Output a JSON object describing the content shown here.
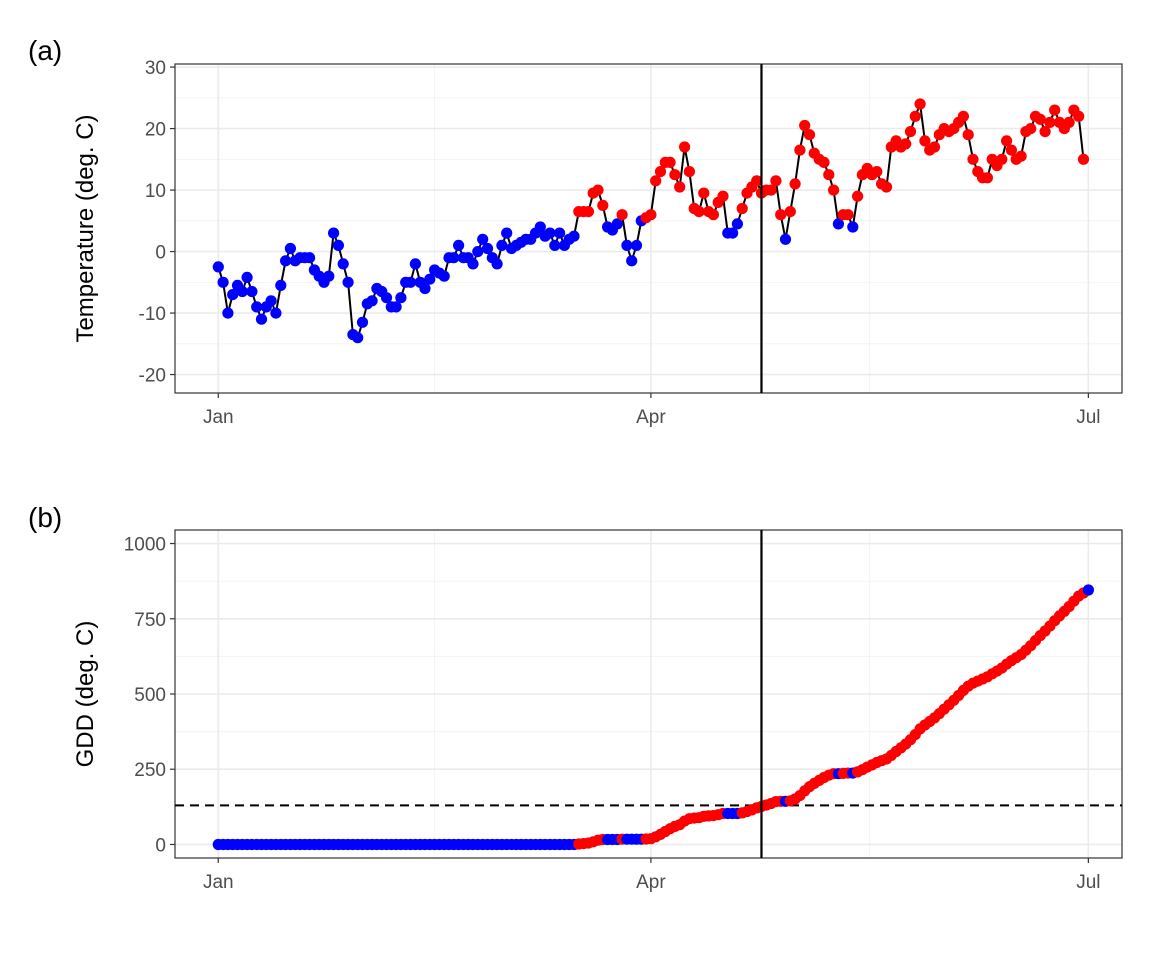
{
  "panels": [
    {
      "label": "(a)",
      "ylabel": "Temperature (deg. C)"
    },
    {
      "label": "(b)",
      "ylabel": "GDD (deg. C)"
    }
  ],
  "colors": {
    "below": "#0000ff",
    "above": "#ff0000",
    "line": "#000000",
    "ref": "#000000"
  },
  "chart_data": [
    {
      "type": "line",
      "panel": "a",
      "x_axis": {
        "unit": "day of year",
        "ticks": [
          {
            "value": 1,
            "label": "Jan"
          },
          {
            "value": 91,
            "label": "Apr"
          },
          {
            "value": 182,
            "label": "Jul"
          }
        ],
        "range": [
          -8,
          189
        ]
      },
      "y_axis": {
        "ticks": [
          -20,
          -10,
          0,
          10,
          20,
          30
        ],
        "range": [
          -23,
          30.5
        ]
      },
      "vertical_line_x": 114,
      "point_color_rule": "red if temperature > 5 deg. C, else blue",
      "grid": true,
      "series": [
        {
          "x_start": 1,
          "values": [
            -2.5,
            -5,
            -10,
            -7,
            -5.5,
            -6.5,
            -4.2,
            -6.5,
            -9,
            -11,
            -9,
            -8,
            -10,
            -5.5,
            -1.5,
            0.5,
            -1.5,
            -1,
            -1,
            -1,
            -3,
            -4,
            -5,
            -4,
            3,
            1,
            -2,
            -5,
            -13.5,
            -14,
            -11.5,
            -8.5,
            -8,
            -6,
            -6.5,
            -7.5,
            -9,
            -9,
            -7.5,
            -5,
            -5,
            -2,
            -5,
            -6,
            -4.5,
            -3,
            -3.5,
            -4,
            -1,
            -1,
            1,
            -1,
            -1,
            -2,
            0,
            2,
            0.5,
            -1,
            -2,
            1,
            3,
            0.5,
            1,
            1.5,
            2,
            2,
            3,
            4,
            2.5,
            3,
            1,
            3,
            1,
            2,
            2.5,
            6.5,
            6.5,
            6.5,
            9.5,
            10,
            7.5,
            4,
            3.5,
            4.5,
            6,
            1,
            -1.5,
            1,
            5,
            5.5,
            6,
            11.5,
            13,
            14.5,
            14.5,
            12.5,
            10.5,
            17,
            13,
            7,
            6.5,
            9.5,
            6.5,
            6,
            8,
            9,
            3,
            3,
            4.5,
            7,
            9.5,
            10.5,
            11.5,
            9.5,
            10,
            10,
            11.5,
            6,
            2,
            6.5,
            11,
            16.5,
            20.5,
            19,
            16,
            15,
            14.5,
            12.5,
            10,
            4.5,
            6,
            6,
            4,
            9,
            12.5,
            13.5,
            12.5,
            13,
            11,
            10.5,
            17,
            18,
            17,
            17.5,
            19.5,
            22,
            24,
            18,
            16.5,
            17,
            19,
            20,
            19.5,
            20,
            21,
            22,
            19,
            15,
            13,
            12,
            12,
            15,
            14,
            15,
            18,
            16.5,
            15,
            15.5,
            19.5,
            20,
            22,
            21.5,
            19.5,
            21,
            23,
            21,
            20,
            21,
            23,
            22,
            15
          ]
        }
      ]
    },
    {
      "type": "line",
      "panel": "b",
      "x_axis": {
        "unit": "day of year",
        "ticks": [
          {
            "value": 1,
            "label": "Jan"
          },
          {
            "value": 91,
            "label": "Apr"
          },
          {
            "value": 182,
            "label": "Jul"
          }
        ],
        "range": [
          -8,
          189
        ]
      },
      "y_axis": {
        "ticks": [
          0,
          250,
          500,
          750,
          1000
        ],
        "range": [
          -45,
          1045
        ]
      },
      "vertical_line_x": 114,
      "horizontal_dashed_y": 130,
      "point_color_rule": "red if that day's temperature > 5 deg. C, else blue",
      "grid": true,
      "series": [
        {
          "x_start": 1,
          "values": [
            0,
            0,
            0,
            0,
            0,
            0,
            0,
            0,
            0,
            0,
            0,
            0,
            0,
            0,
            0,
            0,
            0,
            0,
            0,
            0,
            0,
            0,
            0,
            0,
            0,
            0,
            0,
            0,
            0,
            0,
            0,
            0,
            0,
            0,
            0,
            0,
            0,
            0,
            0,
            0,
            0,
            0,
            0,
            0,
            0,
            0,
            0,
            0,
            0,
            0,
            0,
            0,
            0,
            0,
            0,
            0,
            0,
            0,
            0,
            0,
            0,
            0,
            0,
            0,
            0,
            0,
            0,
            0,
            0,
            0,
            0,
            0,
            0,
            0,
            0,
            1.5,
            3,
            4.5,
            9,
            14,
            16.5,
            16.5,
            16.5,
            16.5,
            17.5,
            17.5,
            17.5,
            17.5,
            17.5,
            18,
            19,
            25.5,
            33.5,
            43,
            52.5,
            60,
            65.5,
            77.5,
            85.5,
            87.5,
            89,
            93.5,
            95,
            96,
            99,
            103,
            103,
            103,
            103,
            105,
            109.5,
            115,
            121.5,
            126,
            131,
            136,
            142.5,
            143.5,
            143.5,
            145,
            151,
            162.5,
            178,
            192,
            203,
            213,
            222.5,
            230,
            235,
            235,
            236,
            237,
            237,
            241,
            248.5,
            257,
            264.5,
            272.5,
            278.5,
            284,
            296,
            309,
            321,
            333.5,
            348,
            365,
            384,
            397,
            408.5,
            420.5,
            434.5,
            449.5,
            464,
            479,
            495,
            512,
            526,
            536,
            543,
            550,
            557,
            567,
            576,
            586,
            599,
            610.5,
            620.5,
            631,
            645.5,
            660.5,
            677.5,
            694,
            709.5,
            725.5,
            743.5,
            759.5,
            774.5,
            790.5,
            808.5,
            825.5,
            835.5,
            845.5
          ]
        }
      ]
    }
  ]
}
